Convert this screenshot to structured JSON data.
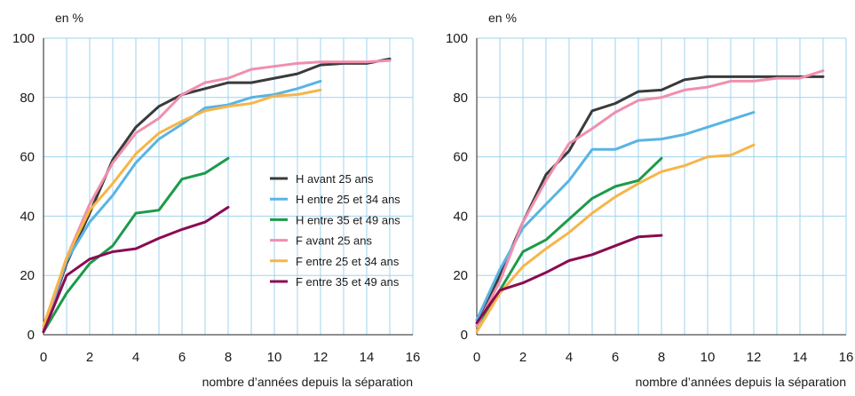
{
  "chart_data": [
    {
      "type": "line",
      "title": "",
      "ylabel": "en %",
      "xlabel": "nombre d’années depuis la séparation",
      "xlim": [
        0,
        16
      ],
      "ylim": [
        0,
        100
      ],
      "x_ticks": [
        "0",
        "2",
        "4",
        "6",
        "8",
        "10",
        "12",
        "14",
        "16"
      ],
      "y_ticks": [
        "0",
        "20",
        "40",
        "60",
        "80",
        "100"
      ],
      "grid": true,
      "legend": "bottom-right",
      "series": [
        {
          "name": "H avant 25 ans",
          "color": "#3a3a3a",
          "points": [
            [
              0,
              1
            ],
            [
              1,
              24
            ],
            [
              2,
              41
            ],
            [
              3,
              59
            ],
            [
              4,
              70
            ],
            [
              5,
              77
            ],
            [
              6,
              81
            ],
            [
              7,
              83
            ],
            [
              8,
              85
            ],
            [
              9,
              85
            ],
            [
              10,
              86.5
            ],
            [
              11,
              88
            ],
            [
              12,
              91
            ],
            [
              13,
              91.5
            ],
            [
              14,
              91.5
            ],
            [
              15,
              93
            ]
          ]
        },
        {
          "name": "H entre 25 et 34 ans",
          "color": "#59b4e4",
          "points": [
            [
              0,
              1
            ],
            [
              1,
              25
            ],
            [
              2,
              38
            ],
            [
              3,
              47
            ],
            [
              4,
              58
            ],
            [
              5,
              66
            ],
            [
              6,
              71
            ],
            [
              7,
              76.5
            ],
            [
              8,
              77.5
            ],
            [
              9,
              80
            ],
            [
              10,
              81
            ],
            [
              11,
              83
            ],
            [
              12,
              85.5
            ]
          ]
        },
        {
          "name": "H entre 35 et 49 ans",
          "color": "#1e9a4a",
          "points": [
            [
              0,
              1
            ],
            [
              1,
              14
            ],
            [
              2,
              24
            ],
            [
              3,
              30
            ],
            [
              4,
              41
            ],
            [
              5,
              42
            ],
            [
              6,
              52.5
            ],
            [
              7,
              54.5
            ],
            [
              8,
              59.5
            ]
          ]
        },
        {
          "name": "F avant 25 ans",
          "color": "#f08fad",
          "points": [
            [
              0,
              2
            ],
            [
              1,
              26
            ],
            [
              2,
              44
            ],
            [
              3,
              58
            ],
            [
              4,
              68
            ],
            [
              5,
              73
            ],
            [
              6,
              81
            ],
            [
              7,
              85
            ],
            [
              8,
              86.5
            ],
            [
              9,
              89.5
            ],
            [
              10,
              90.5
            ],
            [
              11,
              91.5
            ],
            [
              12,
              92
            ],
            [
              13,
              92
            ],
            [
              14,
              92
            ],
            [
              15,
              92.5
            ]
          ]
        },
        {
          "name": "F entre 25 et 34 ans",
          "color": "#f7b548",
          "points": [
            [
              0,
              3
            ],
            [
              1,
              26
            ],
            [
              2,
              42
            ],
            [
              3,
              51
            ],
            [
              4,
              61
            ],
            [
              5,
              68
            ],
            [
              6,
              72
            ],
            [
              7,
              75.5
            ],
            [
              8,
              77
            ],
            [
              9,
              78
            ],
            [
              10,
              80.5
            ],
            [
              11,
              81
            ],
            [
              12,
              82.5
            ]
          ]
        },
        {
          "name": "F entre 35 et 49 ans",
          "color": "#8a0b52",
          "points": [
            [
              0,
              1
            ],
            [
              1,
              20
            ],
            [
              2,
              25.5
            ],
            [
              3,
              28
            ],
            [
              4,
              29
            ],
            [
              5,
              32.5
            ],
            [
              6,
              35.5
            ],
            [
              7,
              38
            ],
            [
              8,
              43
            ]
          ]
        }
      ]
    },
    {
      "type": "line",
      "title": "",
      "ylabel": "en %",
      "xlabel": "nombre d’années depuis la séparation",
      "xlim": [
        0,
        16
      ],
      "ylim": [
        0,
        100
      ],
      "x_ticks": [
        "0",
        "2",
        "4",
        "6",
        "8",
        "10",
        "12",
        "14",
        "16"
      ],
      "y_ticks": [
        "0",
        "20",
        "40",
        "60",
        "80",
        "100"
      ],
      "grid": true,
      "series": [
        {
          "color": "#3a3a3a",
          "points": [
            [
              0,
              3
            ],
            [
              1,
              20
            ],
            [
              2,
              38
            ],
            [
              3,
              54
            ],
            [
              4,
              62
            ],
            [
              5,
              75.5
            ],
            [
              6,
              78
            ],
            [
              7,
              82
            ],
            [
              8,
              82.5
            ],
            [
              9,
              86
            ],
            [
              10,
              87
            ],
            [
              11,
              87
            ],
            [
              12,
              87
            ],
            [
              13,
              87
            ],
            [
              14,
              87
            ],
            [
              15,
              87
            ]
          ]
        },
        {
          "color": "#59b4e4",
          "points": [
            [
              0,
              5
            ],
            [
              1,
              22
            ],
            [
              2,
              36
            ],
            [
              3,
              44
            ],
            [
              4,
              52
            ],
            [
              5,
              62.5
            ],
            [
              6,
              62.5
            ],
            [
              7,
              65.5
            ],
            [
              8,
              66
            ],
            [
              9,
              67.5
            ],
            [
              10,
              70
            ],
            [
              11,
              72.5
            ],
            [
              12,
              75
            ]
          ]
        },
        {
          "color": "#1e9a4a",
          "points": [
            [
              0,
              3
            ],
            [
              1,
              15
            ],
            [
              2,
              28
            ],
            [
              3,
              32
            ],
            [
              4,
              39
            ],
            [
              5,
              46
            ],
            [
              6,
              50
            ],
            [
              7,
              52
            ],
            [
              8,
              59.5
            ]
          ]
        },
        {
          "color": "#f08fad",
          "points": [
            [
              0,
              3
            ],
            [
              1,
              18
            ],
            [
              2,
              38
            ],
            [
              3,
              52
            ],
            [
              4,
              64.5
            ],
            [
              5,
              69.5
            ],
            [
              6,
              75
            ],
            [
              7,
              79
            ],
            [
              8,
              80
            ],
            [
              9,
              82.5
            ],
            [
              10,
              83.5
            ],
            [
              11,
              85.5
            ],
            [
              12,
              85.5
            ],
            [
              13,
              86.5
            ],
            [
              14,
              86.5
            ],
            [
              15,
              89
            ]
          ]
        },
        {
          "color": "#f7b548",
          "points": [
            [
              0,
              1
            ],
            [
              1,
              14
            ],
            [
              2,
              23
            ],
            [
              3,
              29
            ],
            [
              4,
              34.5
            ],
            [
              5,
              41
            ],
            [
              6,
              46.5
            ],
            [
              7,
              51
            ],
            [
              8,
              55
            ],
            [
              9,
              57
            ],
            [
              10,
              60
            ],
            [
              11,
              60.5
            ],
            [
              12,
              64
            ]
          ]
        },
        {
          "color": "#8a0b52",
          "points": [
            [
              0,
              4
            ],
            [
              1,
              15
            ],
            [
              2,
              17.5
            ],
            [
              3,
              21
            ],
            [
              4,
              25
            ],
            [
              5,
              27
            ],
            [
              6,
              30
            ],
            [
              7,
              33
            ],
            [
              8,
              33.5
            ]
          ]
        }
      ]
    }
  ]
}
